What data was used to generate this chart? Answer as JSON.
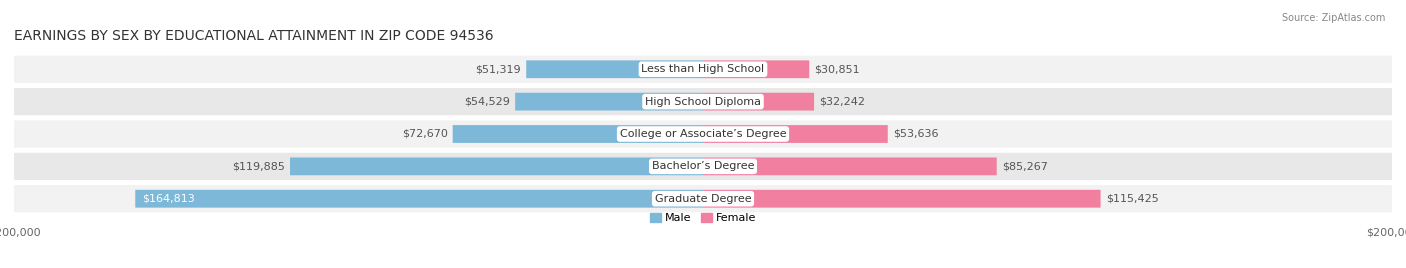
{
  "title": "EARNINGS BY SEX BY EDUCATIONAL ATTAINMENT IN ZIP CODE 94536",
  "source": "Source: ZipAtlas.com",
  "categories": [
    "Less than High School",
    "High School Diploma",
    "College or Associate’s Degree",
    "Bachelor’s Degree",
    "Graduate Degree"
  ],
  "male_values": [
    51319,
    54529,
    72670,
    119885,
    164813
  ],
  "female_values": [
    30851,
    32242,
    53636,
    85267,
    115425
  ],
  "male_color": "#7db8d8",
  "female_color": "#f07fa0",
  "max_value": 200000,
  "bg_color": "#ffffff",
  "row_colors": [
    "#f2f2f2",
    "#e8e8e8"
  ],
  "title_fontsize": 10,
  "label_fontsize": 8,
  "value_fontsize": 8,
  "axis_label_fontsize": 8
}
